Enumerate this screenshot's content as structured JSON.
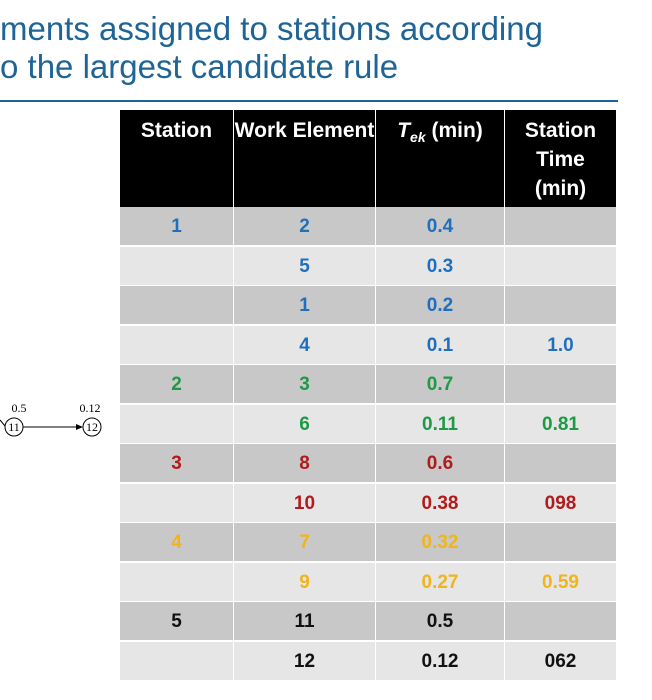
{
  "title": {
    "lines": [
      "ments assigned to stations according",
      "o the largest candidate rule"
    ]
  },
  "diagram": {
    "nodes": [
      {
        "label": "11",
        "weight": "0.5"
      },
      {
        "label": "12",
        "weight": "0.12"
      }
    ]
  },
  "table": {
    "header": [
      "Station",
      "Work Element",
      {
        "symbol": "T",
        "subscript": "ek",
        "unit": "(min)"
      },
      "Station Time (min)"
    ],
    "rows": [
      {
        "color": "#1f6fbf",
        "cells": [
          "1",
          "2",
          "0.4",
          null
        ]
      },
      {
        "color": "#1f6fbf",
        "cells": [
          null,
          "5",
          "0.3",
          null
        ]
      },
      {
        "color": "#1f6fbf",
        "cells": [
          null,
          "1",
          "0.2",
          null
        ]
      },
      {
        "color": "#1f6fbf",
        "cells": [
          null,
          "4",
          "0.1",
          "1.0"
        ]
      },
      {
        "color": "#1e9a45",
        "cells": [
          "2",
          "3",
          "0.7",
          null
        ]
      },
      {
        "color": "#1e9a45",
        "cells": [
          null,
          "6",
          "0.11",
          "0.81"
        ]
      },
      {
        "color": "#b01c1c",
        "cells": [
          "3",
          "8",
          "0.6",
          null
        ]
      },
      {
        "color": "#b01c1c",
        "cells": [
          null,
          "10",
          "0.38",
          "098"
        ]
      },
      {
        "color": "#f0b41c",
        "cells": [
          "4",
          "7",
          "0.32",
          null
        ]
      },
      {
        "color": "#f0b41c",
        "cells": [
          null,
          "9",
          "0.27",
          "0.59"
        ]
      },
      {
        "color": "#111111",
        "cells": [
          "5",
          "11",
          "0.5",
          null
        ]
      },
      {
        "color": "#111111",
        "cells": [
          null,
          "12",
          "0.12",
          "062"
        ]
      }
    ]
  }
}
